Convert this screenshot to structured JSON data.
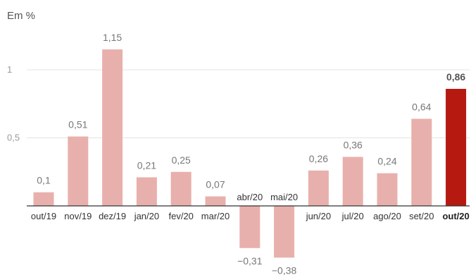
{
  "chart_data": {
    "type": "bar",
    "ylabel": "Em %",
    "categories": [
      "out/19",
      "nov/19",
      "dez/19",
      "jan/20",
      "fev/20",
      "mar/20",
      "abr/20",
      "mai/20",
      "jun/20",
      "jul/20",
      "ago/20",
      "set/20",
      "out/20"
    ],
    "values": [
      0.1,
      0.51,
      1.15,
      0.21,
      0.25,
      0.07,
      -0.31,
      -0.38,
      0.26,
      0.36,
      0.24,
      0.64,
      0.86
    ],
    "value_labels": [
      "0,1",
      "0,51",
      "1,15",
      "0,21",
      "0,25",
      "0,07",
      "−0,31",
      "−0,38",
      "0,26",
      "0,36",
      "0,24",
      "0,64",
      "0,86"
    ],
    "yticks": [
      {
        "value": 0.5,
        "label": "0,5"
      },
      {
        "value": 1,
        "label": "1"
      }
    ],
    "ylim": [
      -0.5,
      1.3
    ],
    "highlight_index": 12,
    "colors": {
      "bar": "#e8b0ac",
      "highlight": "#b5190f",
      "grid": "#e3e3e3",
      "axis": "#333333"
    }
  }
}
